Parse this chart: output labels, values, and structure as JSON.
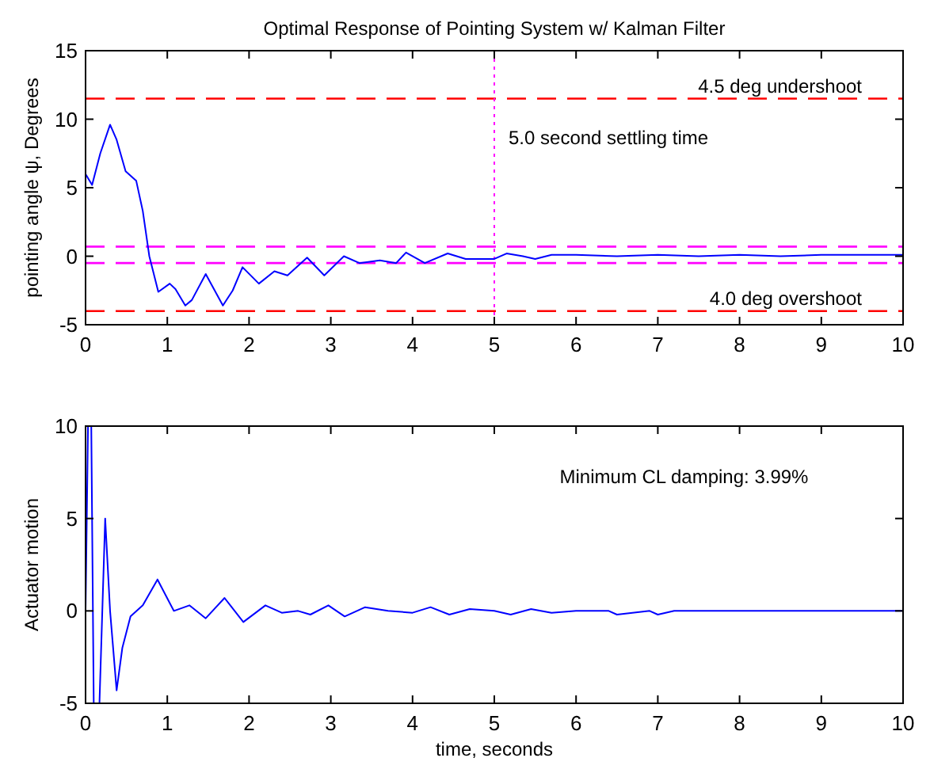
{
  "chart_data": [
    {
      "type": "line",
      "title": "Optimal Response of Pointing System w/ Kalman Filter",
      "ylabel": "pointing angle ψ, Degrees",
      "xlim": [
        0,
        10
      ],
      "xticks": [
        0,
        1,
        2,
        3,
        4,
        5,
        6,
        7,
        8,
        9,
        10
      ],
      "ylim": [
        -5,
        15
      ],
      "yticks": [
        -5,
        0,
        5,
        10,
        15
      ],
      "marker": "none",
      "line_style": "solid",
      "series": [
        {
          "color": "#0000ff",
          "x": [
            0,
            0.08,
            0.18,
            0.3,
            0.38,
            0.49,
            0.62,
            0.7,
            0.78,
            0.89,
            1.03,
            1.1,
            1.22,
            1.3,
            1.47,
            1.68,
            1.8,
            1.92,
            2.12,
            2.31,
            2.47,
            2.71,
            2.92,
            3.16,
            3.35,
            3.6,
            3.8,
            3.92,
            4.15,
            4.43,
            4.65,
            5.0,
            5.15,
            5.35,
            5.5,
            5.7,
            6.0,
            6.5,
            7.0,
            7.5,
            8.0,
            8.5,
            9.0,
            9.5,
            10
          ],
          "values": [
            6,
            5.2,
            7.5,
            9.6,
            8.5,
            6.2,
            5.5,
            3.3,
            0,
            -2.6,
            -2,
            -2.4,
            -3.6,
            -3.2,
            -1.3,
            -3.6,
            -2.5,
            -0.8,
            -2,
            -1.1,
            -1.4,
            -0.1,
            -1.4,
            0,
            -0.5,
            -0.3,
            -0.5,
            0.27,
            -0.5,
            0.2,
            -0.2,
            -0.2,
            0.2,
            0,
            -0.2,
            0.1,
            0.1,
            0,
            0.1,
            0,
            0.1,
            0,
            0.1,
            0.1,
            0.1
          ]
        }
      ],
      "ref_lines": [
        {
          "axis": "y",
          "value": 11.5,
          "label": "4.5 deg undershoot",
          "color": "#ff0000",
          "line_style": "dashed"
        },
        {
          "axis": "y",
          "value": -4,
          "label": "4.0 deg overshoot",
          "color": "#ff0000",
          "line_style": "dashed"
        },
        {
          "axis": "y",
          "value": 0.7,
          "label": null,
          "color": "#ff00ff",
          "line_style": "dashed"
        },
        {
          "axis": "y",
          "value": -0.5,
          "label": null,
          "color": "#ff00ff",
          "line_style": "dashed"
        },
        {
          "axis": "x",
          "value": 5,
          "label": "5.0 second settling time",
          "color": "#ff00ff",
          "line_style": "dotted"
        }
      ]
    },
    {
      "type": "line",
      "xlabel": "time, seconds",
      "ylabel": "Actuator motion",
      "xlim": [
        0,
        10
      ],
      "xticks": [
        0,
        1,
        2,
        3,
        4,
        5,
        6,
        7,
        8,
        9,
        10
      ],
      "ylim": [
        -5,
        10
      ],
      "yticks": [
        -5,
        0,
        5,
        10
      ],
      "marker": "none",
      "line_style": "solid",
      "annotations": [
        "Minimum CL damping: 3.99%"
      ],
      "series": [
        {
          "color": "#0000ff",
          "x": [
            0,
            0.03,
            0.07,
            0.1,
            0.17,
            0.24,
            0.3,
            0.38,
            0.45,
            0.55,
            0.7,
            0.88,
            1.08,
            1.27,
            1.47,
            1.7,
            1.93,
            2.2,
            2.4,
            2.6,
            2.75,
            2.97,
            3.17,
            3.42,
            3.7,
            4.0,
            4.22,
            4.45,
            4.7,
            5.0,
            5.2,
            5.45,
            5.7,
            6.0,
            6.4,
            6.5,
            6.9,
            7.0,
            7.2,
            8,
            9,
            10
          ],
          "values": [
            0,
            10,
            10,
            -5,
            -5,
            5,
            0,
            -4.3,
            -2,
            -0.3,
            0.3,
            1.7,
            0,
            0.3,
            -0.4,
            0.7,
            -0.6,
            0.3,
            -0.1,
            0,
            -0.2,
            0.3,
            -0.3,
            0.2,
            0,
            -0.1,
            0.2,
            -0.2,
            0.1,
            0,
            -0.2,
            0.1,
            -0.1,
            0,
            0,
            -0.2,
            0,
            -0.2,
            0,
            0,
            0,
            0
          ]
        }
      ]
    }
  ]
}
